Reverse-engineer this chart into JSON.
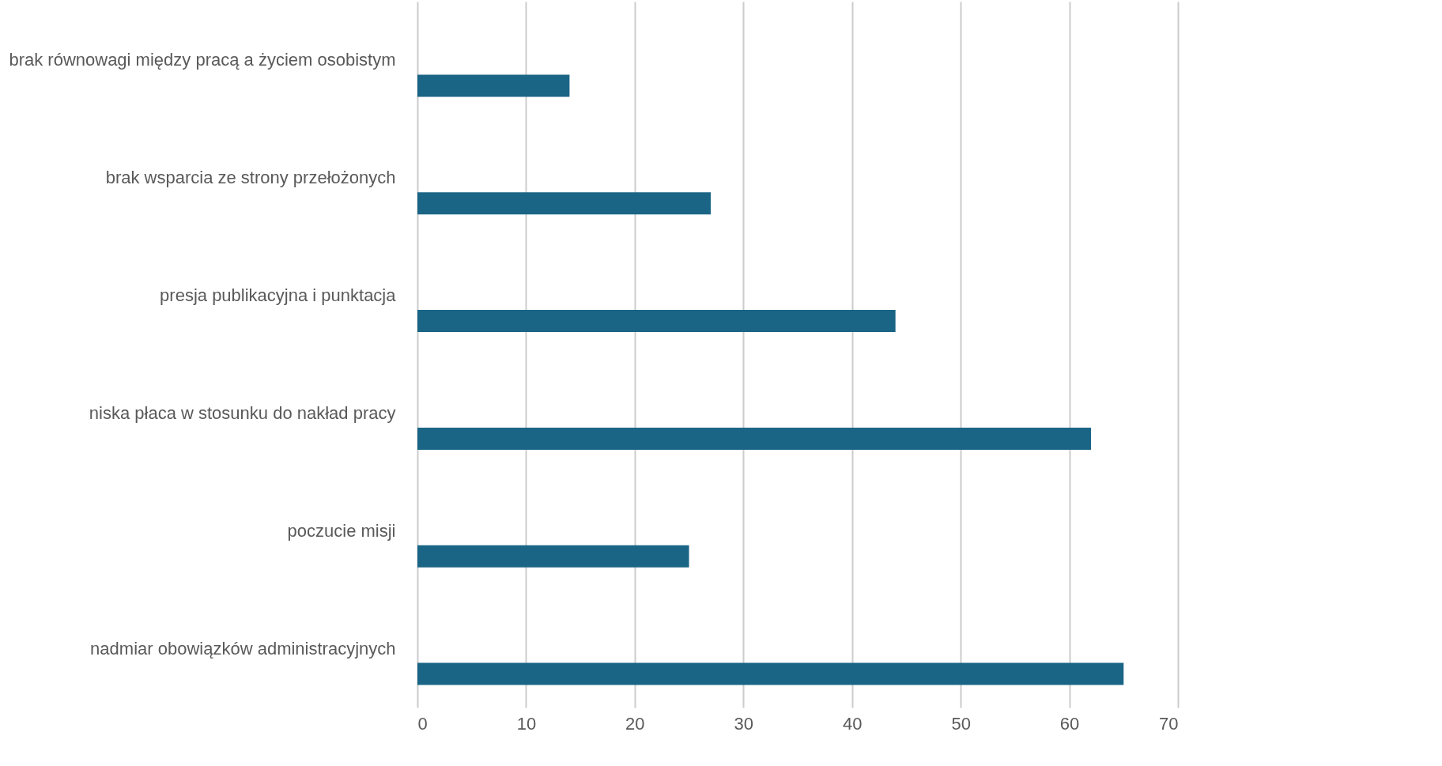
{
  "chart_data": {
    "type": "bar",
    "orientation": "horizontal",
    "categories": [
      "brak równowagi między pracą a życiem osobistym",
      "brak wsparcia ze strony przełożonych",
      "presja publikacyjna i punktacja",
      "niska płaca w stosunku do nakład pracy",
      "poczucie misji ",
      "nadmiar obowiązków administracyjnych"
    ],
    "values": [
      14,
      27,
      44,
      62,
      25,
      65
    ],
    "color": "#1a6585",
    "xlim": [
      0,
      70
    ],
    "xticks": [
      0,
      10,
      20,
      30,
      40,
      50,
      60,
      70
    ],
    "grid": "x"
  }
}
